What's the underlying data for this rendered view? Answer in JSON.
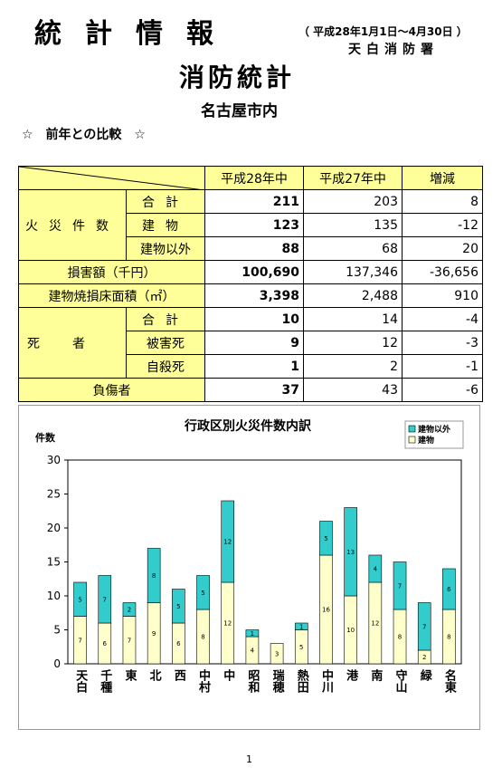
{
  "header": {
    "title": "統計情報",
    "period": "（ 平成28年1月1日～4月30日 ）",
    "office": "天白消防署",
    "subtitle": "消防統計",
    "area": "名古屋市内",
    "section": "☆　前年との比較　☆"
  },
  "table": {
    "header": [
      "平成28年中",
      "平成27年中",
      "増減"
    ],
    "groups": [
      "火災件数",
      "死者"
    ],
    "rows": [
      {
        "label": "合計",
        "values": [
          "211",
          "203",
          "8"
        ]
      },
      {
        "label": "建物",
        "values": [
          "123",
          "135",
          "-12"
        ]
      },
      {
        "label": "建物以外",
        "values": [
          "88",
          "68",
          "20"
        ]
      },
      {
        "label": "損害額（千円）",
        "values": [
          "100,690",
          "137,346",
          "-36,656"
        ]
      },
      {
        "label": "建物焼損床面積（㎡）",
        "values": [
          "3,398",
          "2,488",
          "910"
        ]
      },
      {
        "label": "合計",
        "values": [
          "10",
          "14",
          "-4"
        ]
      },
      {
        "label": "被害死",
        "values": [
          "9",
          "12",
          "-3"
        ]
      },
      {
        "label": "自殺死",
        "values": [
          "1",
          "2",
          "-1"
        ]
      },
      {
        "label": "負傷者",
        "values": [
          "37",
          "43",
          "-6"
        ]
      }
    ]
  },
  "chart_data": {
    "type": "stacked-bar",
    "title": "行政区別火災件数内訳",
    "y_label": "件数",
    "categories": [
      "天白",
      "千種",
      "東",
      "北",
      "西",
      "中村",
      "中",
      "昭和",
      "瑞穂",
      "熱田",
      "中川",
      "港",
      "南",
      "守山",
      "緑",
      "名東"
    ],
    "series": [
      {
        "name": "建物",
        "color": "#ffffcc",
        "values": [
          7,
          6,
          7,
          9,
          6,
          8,
          12,
          4,
          3,
          5,
          16,
          10,
          12,
          8,
          2,
          8
        ]
      },
      {
        "name": "建物以外",
        "color": "#33cccc",
        "values": [
          5,
          7,
          2,
          8,
          5,
          5,
          12,
          1,
          0,
          1,
          5,
          13,
          4,
          7,
          7,
          6
        ]
      }
    ],
    "ylim": [
      0,
      30
    ],
    "yticks": [
      0,
      5,
      10,
      15,
      20,
      25,
      30
    ],
    "legend": "upper-right"
  },
  "footer": {
    "page": "1"
  }
}
